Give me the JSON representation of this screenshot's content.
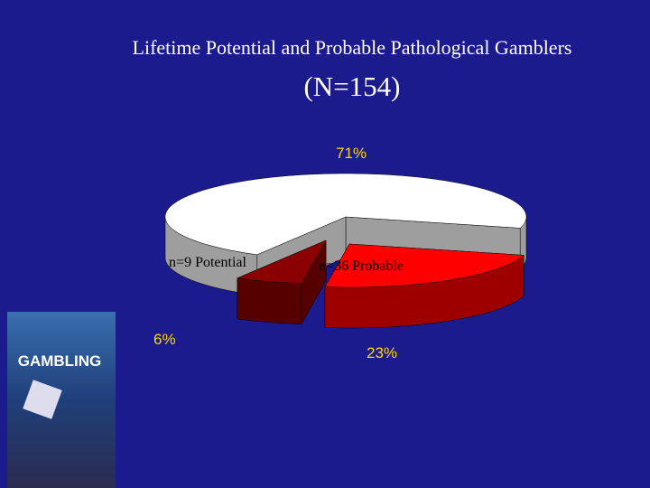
{
  "chart_data": {
    "type": "pie",
    "title": "Lifetime Potential and Probable Pathological Gamblers",
    "subtitle": "(N=154)",
    "categories": [
      null,
      "n=9 Potential",
      "n=36 Probable"
    ],
    "values": [
      71,
      6,
      23
    ],
    "value_labels": [
      "71%",
      "6%",
      "23%"
    ],
    "colors": [
      "#ffffff",
      "#8b0000",
      "#ff0000"
    ]
  },
  "cover_title": "GAMBLING"
}
